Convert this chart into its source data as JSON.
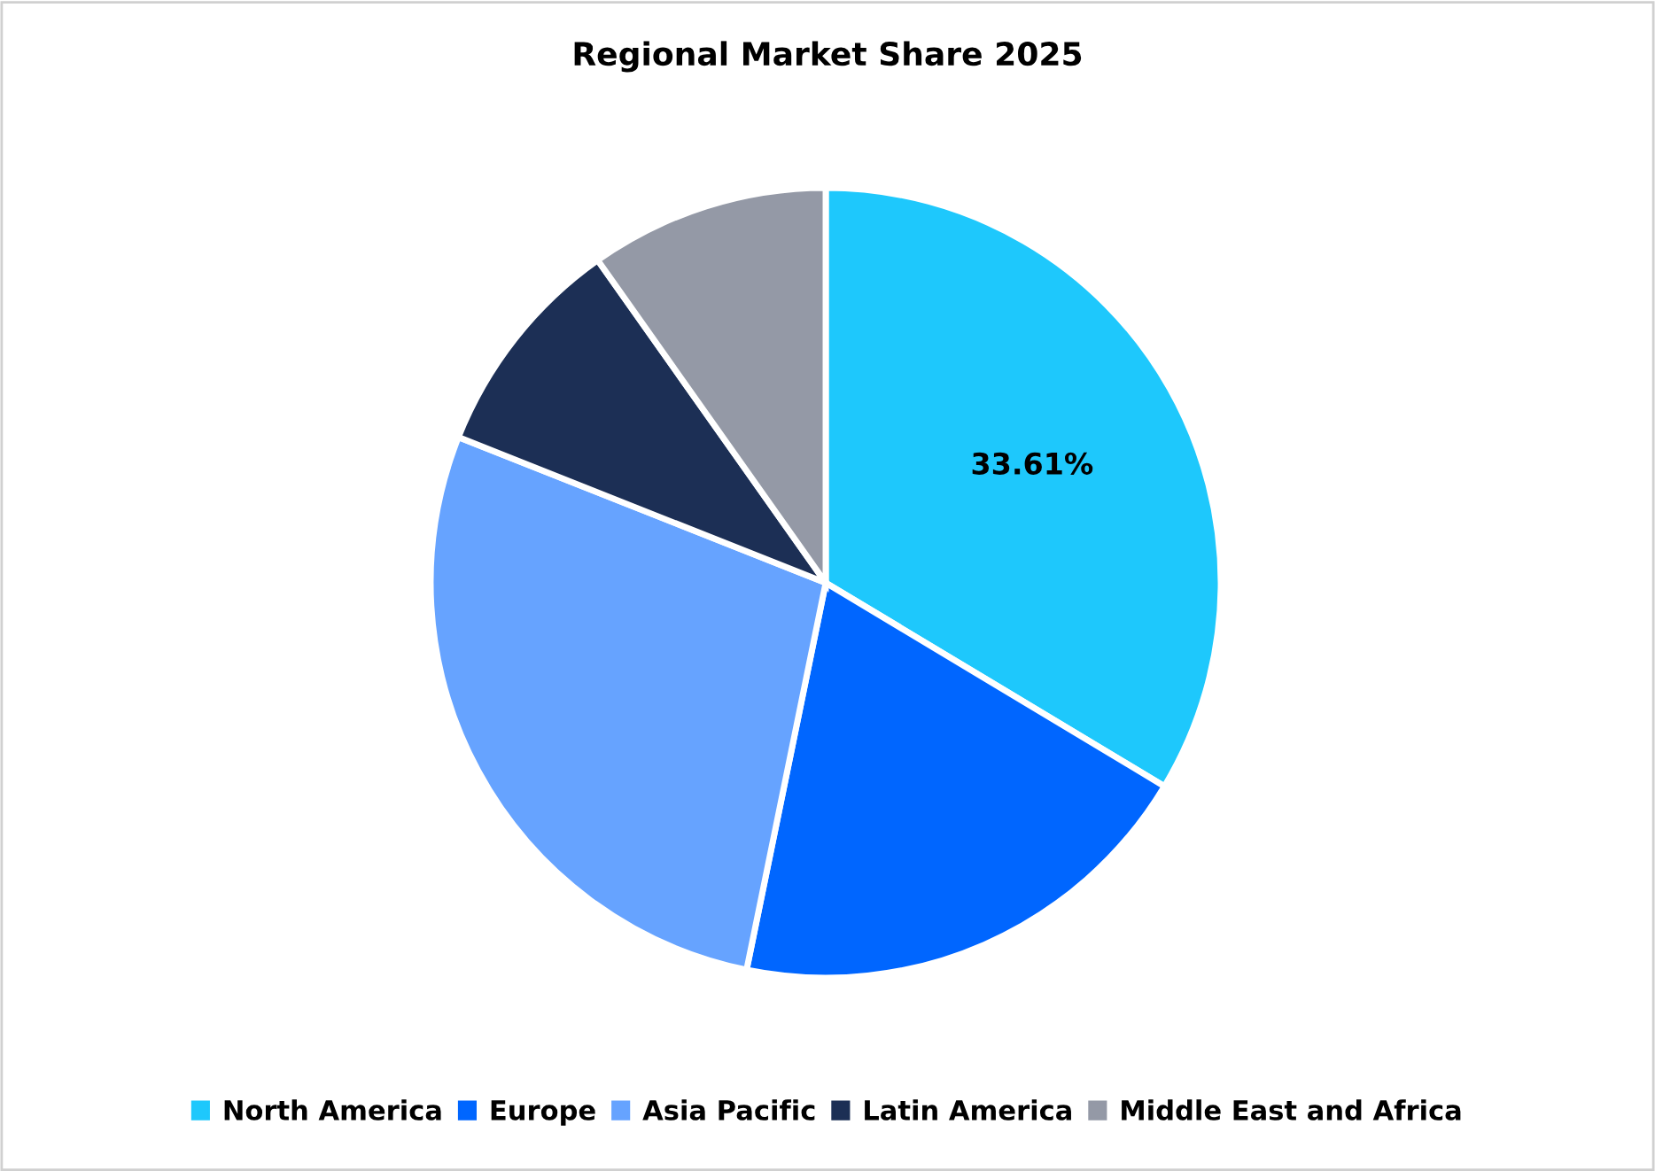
{
  "chart_data": {
    "type": "pie",
    "title": "Regional Market Share 2025",
    "categories": [
      "North America",
      "Europe",
      "Asia Pacific",
      "Latin America",
      "Middle East and Africa"
    ],
    "values": [
      33.61,
      19.6,
      27.8,
      9.2,
      9.79
    ],
    "colors": [
      "#1ec8fc",
      "#0066ff",
      "#66a3ff",
      "#1c2f55",
      "#9499a6"
    ],
    "value_labels": [
      "33.61%",
      null,
      null,
      null,
      null
    ],
    "legend": "bottom"
  }
}
